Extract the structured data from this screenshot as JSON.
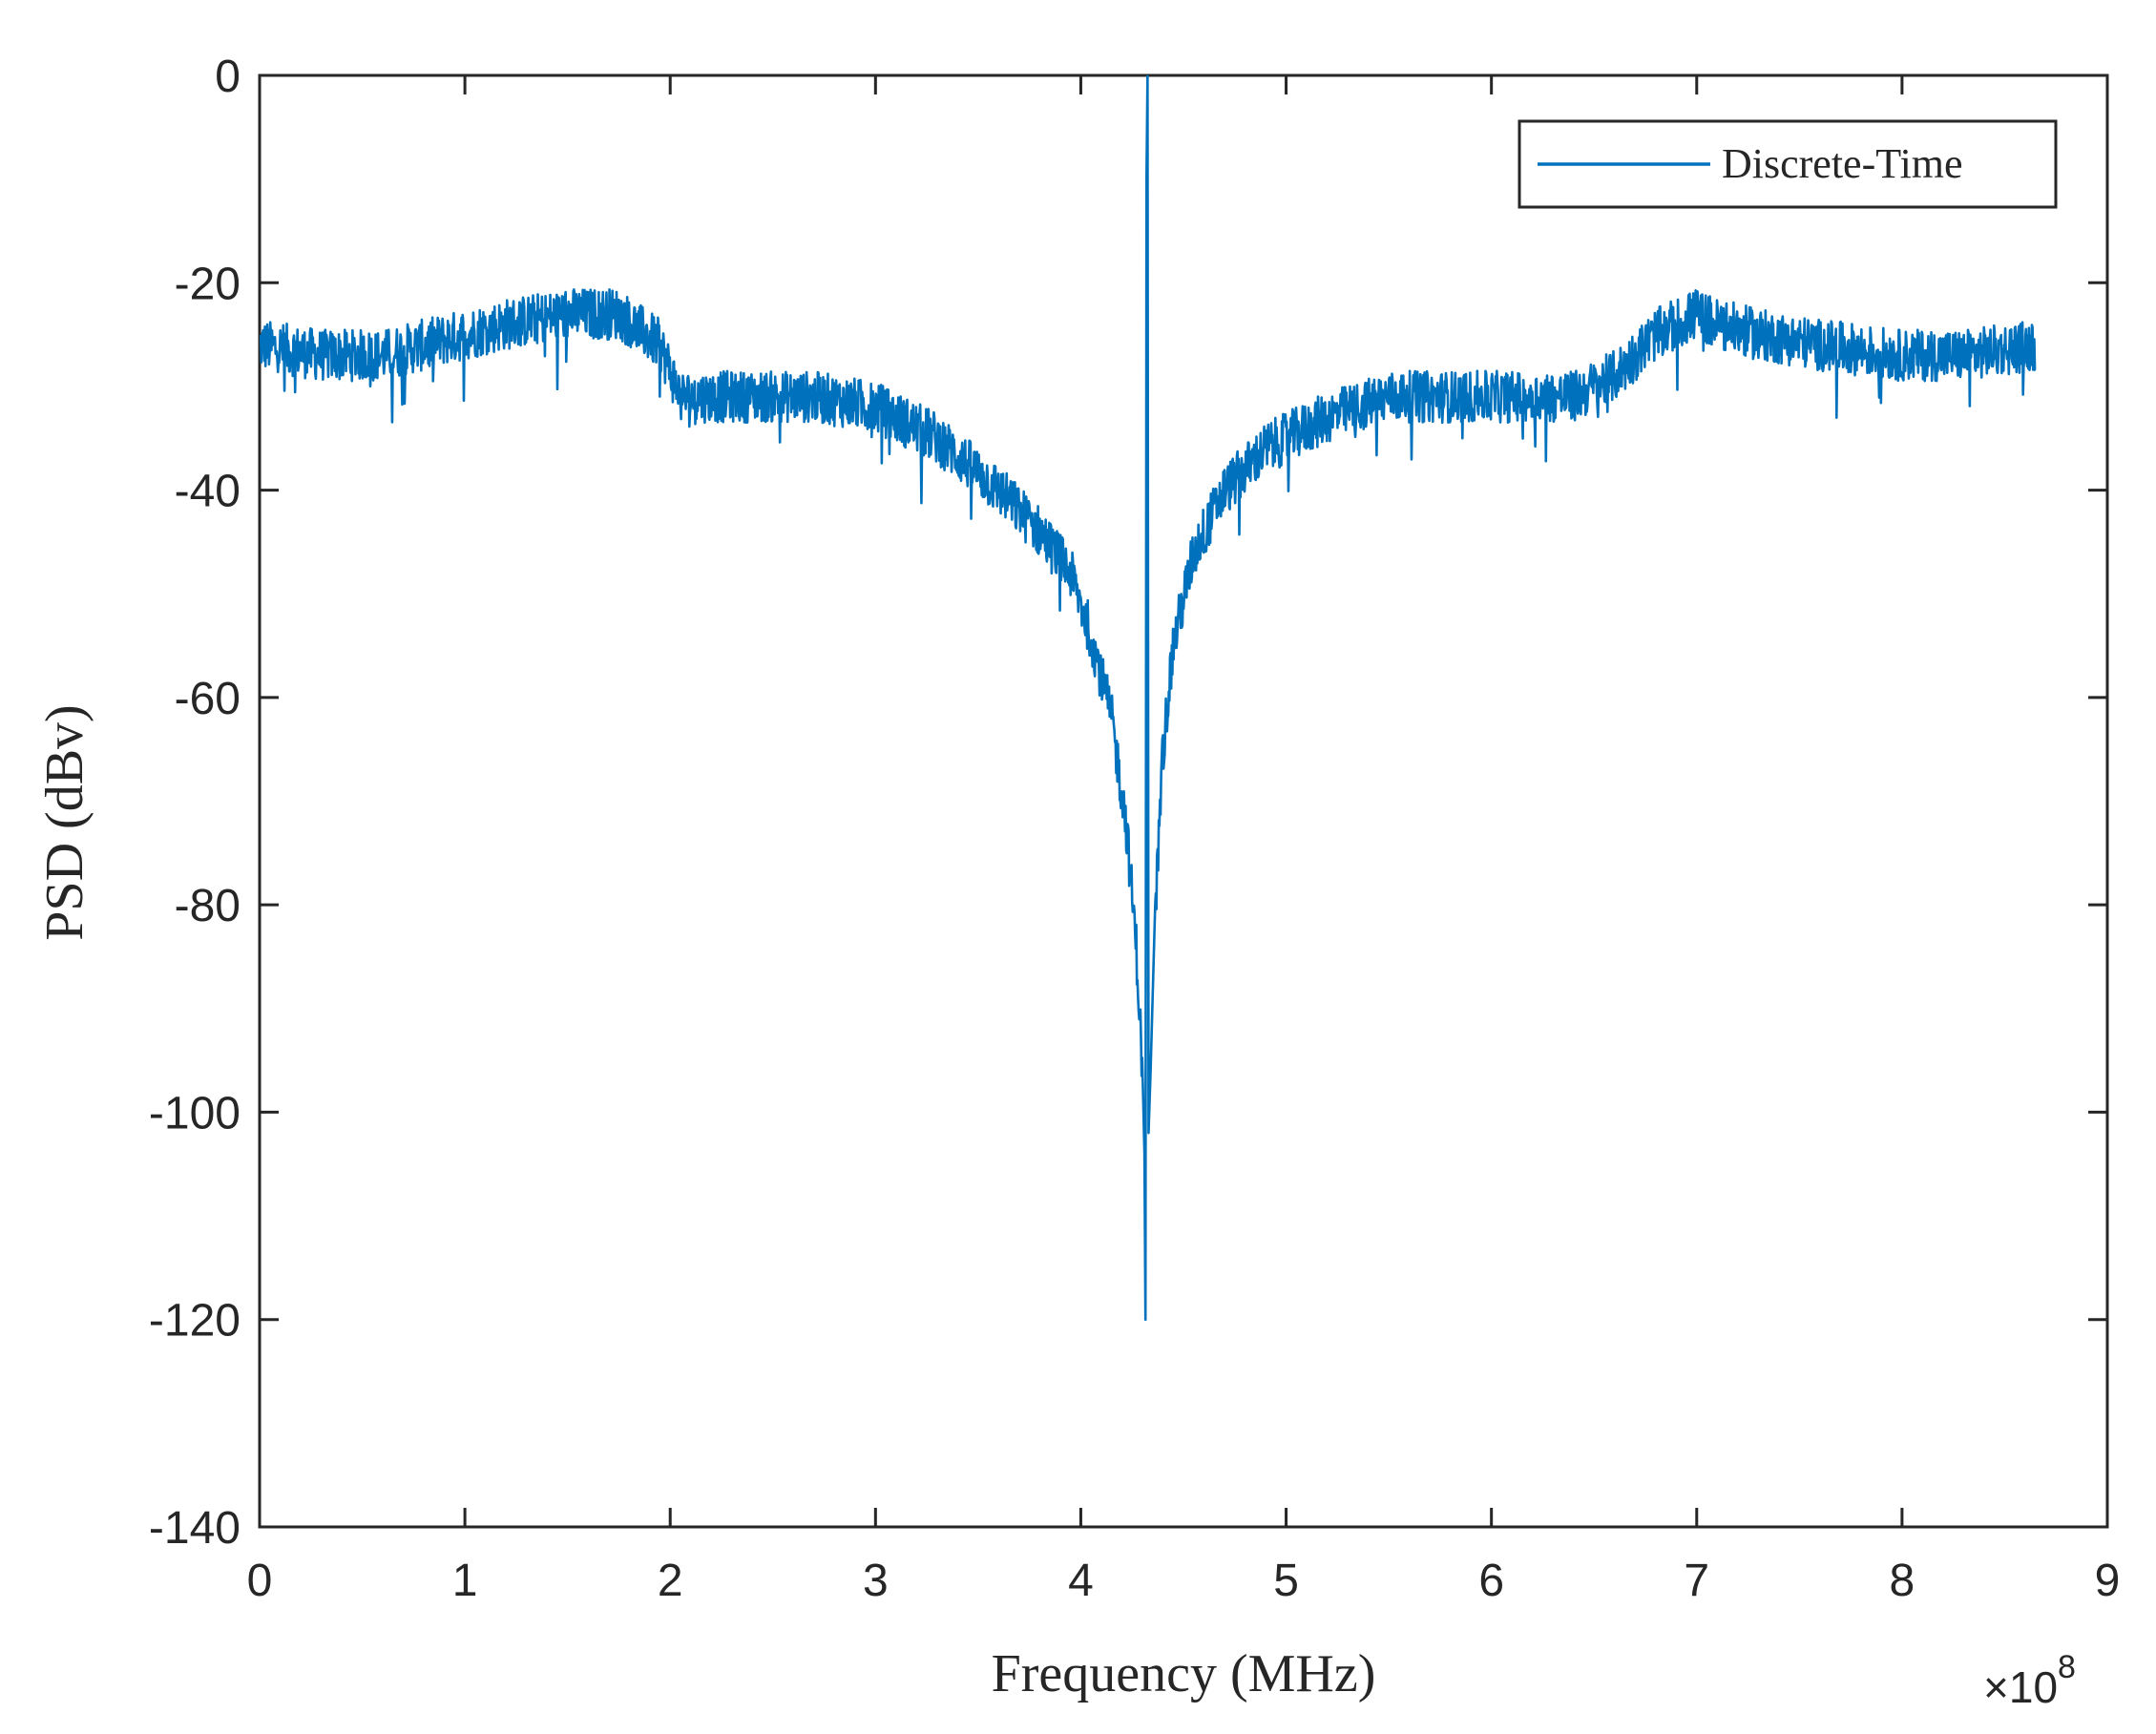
{
  "chart_data": {
    "type": "line",
    "title": "",
    "xlabel": "Frequency (MHz)",
    "ylabel": "PSD (dBv)",
    "x_exponent_label": {
      "base": "×10",
      "exponent": "8"
    },
    "xlim": [
      0,
      9
    ],
    "ylim": [
      -140,
      0
    ],
    "xticks": [
      0,
      1,
      2,
      3,
      4,
      5,
      6,
      7,
      8,
      9
    ],
    "xtick_labels": [
      "0",
      "1",
      "2",
      "3",
      "4",
      "5",
      "6",
      "7",
      "8",
      "9"
    ],
    "yticks": [
      0,
      -20,
      -40,
      -60,
      -80,
      -100,
      -120,
      -140
    ],
    "ytick_labels": [
      "0",
      "-20",
      "-40",
      "-60",
      "-80",
      "-100",
      "-120",
      "-140"
    ],
    "grid": false,
    "legend": {
      "position": "top-right",
      "entries": [
        "Discrete-Time"
      ]
    },
    "series": [
      {
        "name": "Discrete-Time",
        "color": "#0072BD",
        "noise_amplitude_db": 2.5,
        "x": [
          0.0,
          0.3,
          0.6,
          1.0,
          1.2,
          1.5,
          1.75,
          1.95,
          2.05,
          2.3,
          2.7,
          3.0,
          3.3,
          3.6,
          3.8,
          3.95,
          4.05,
          4.15,
          4.22,
          4.27,
          4.3,
          4.31,
          4.315,
          4.32,
          4.325,
          4.33,
          4.34,
          4.36,
          4.4,
          4.45,
          4.55,
          4.7,
          4.9,
          5.2,
          5.5,
          5.8,
          6.1,
          6.4,
          6.6,
          6.8,
          7.0,
          7.1,
          7.3,
          7.6,
          8.0,
          8.3,
          8.65
        ],
        "values": [
          -26,
          -27,
          -27,
          -25,
          -24,
          -23,
          -23,
          -26,
          -31,
          -31,
          -31,
          -32,
          -35,
          -40,
          -44,
          -48,
          -54,
          -62,
          -72,
          -84,
          -96,
          -104,
          -120,
          -10,
          0,
          -102,
          -96,
          -82,
          -65,
          -55,
          -46,
          -40,
          -36,
          -33,
          -31,
          -31,
          -31,
          -31,
          -29,
          -25,
          -23,
          -24,
          -25,
          -26,
          -27,
          -27,
          -26
        ]
      }
    ]
  }
}
